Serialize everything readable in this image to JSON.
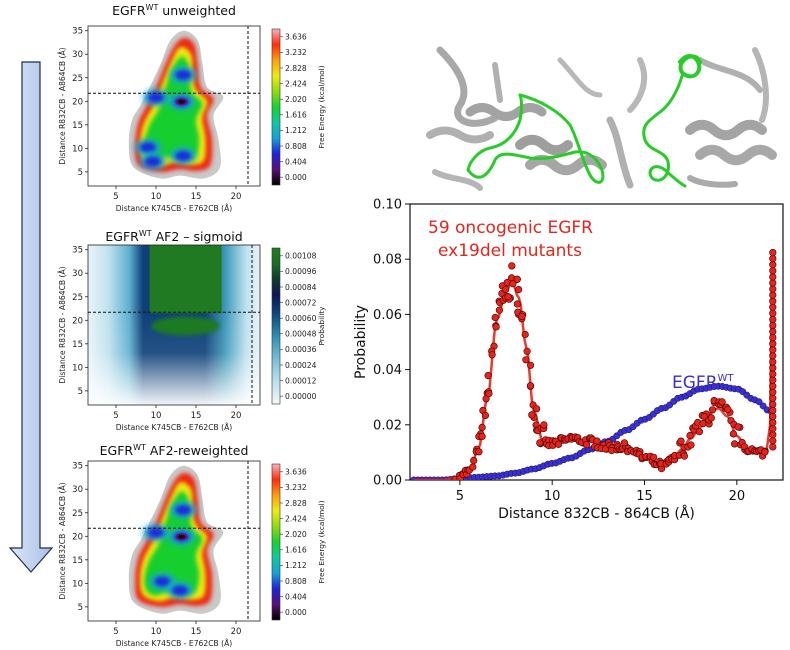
{
  "figure": {
    "arrow": {
      "direction": "down"
    }
  },
  "chart_data": [
    {
      "id": "unweighted",
      "type": "heatmap",
      "title": "EGFR",
      "title_sup": "WT",
      "title_rest": " unweighted",
      "xlabel": "Distance K745CB - E762CB (Å)",
      "ylabel": "Distance R832CB - A864CB (Å)",
      "xticks": [
        5,
        10,
        15,
        20
      ],
      "yticks": [
        5,
        10,
        15,
        20,
        25,
        30,
        35
      ],
      "xlim": [
        1.5,
        23
      ],
      "ylim": [
        2,
        36
      ],
      "ref_x": 21.5,
      "ref_y": 21.7,
      "colorbar": {
        "label": "Free Energy (kcal/mol)",
        "ticks": [
          "3.636",
          "3.232",
          "2.828",
          "2.424",
          "2.020",
          "1.616",
          "1.212",
          "0.808",
          "0.404",
          "0.000"
        ],
        "colors": [
          "#000000",
          "#5a0f7a",
          "#1d23d8",
          "#14a2d8",
          "#11c8a0",
          "#18d22e",
          "#8fdc10",
          "#ecec12",
          "#ff9e0c",
          "#ff2e0c",
          "#f9b1bd"
        ]
      },
      "minima": [
        [
          13.2,
          19.9
        ],
        [
          10.0,
          20.8
        ],
        [
          13.4,
          25.6
        ],
        [
          9.0,
          10.2
        ],
        [
          13.4,
          8.4
        ],
        [
          9.6,
          7.2
        ]
      ]
    },
    {
      "id": "af2_sigmoid",
      "type": "heatmap",
      "title": "EGFR",
      "title_sup": "WT",
      "title_rest": " AF2 – sigmoid",
      "xlabel": "Distance K745CB - E762CB (Å)",
      "ylabel": "Distance R832CB - A864CB (Å)",
      "xticks": [
        5,
        10,
        15,
        20
      ],
      "yticks": [
        5,
        10,
        15,
        20,
        25,
        30,
        35
      ],
      "xlim": [
        1.5,
        23
      ],
      "ylim": [
        2,
        36
      ],
      "ref_x": 22.0,
      "ref_y": 21.7,
      "colorbar": {
        "label": "Probability",
        "ticks": [
          "0.00108",
          "0.00096",
          "0.00084",
          "0.00072",
          "0.00060",
          "0.00048",
          "0.00036",
          "0.00024",
          "0.00012",
          "0.00000"
        ],
        "colors": [
          "#f2f8fb",
          "#cde7f0",
          "#a3d3e5",
          "#70bcd3",
          "#3f9bbb",
          "#1b6f9b",
          "#0d3f78",
          "#0c1756",
          "#0e3a2e",
          "#1a6e24",
          "#237a20"
        ]
      }
    },
    {
      "id": "af2_reweighted",
      "type": "heatmap",
      "title": "EGFR",
      "title_sup": "WT",
      "title_rest": " AF2-reweighted",
      "xlabel": "Distance K745CB - E762CB (Å)",
      "ylabel": "Distance R832CB - A864CB (Å)",
      "xticks": [
        5,
        10,
        15,
        20
      ],
      "yticks": [
        5,
        10,
        15,
        20,
        25,
        30,
        35
      ],
      "xlim": [
        1.5,
        23
      ],
      "ylim": [
        2,
        36
      ],
      "ref_x": 21.5,
      "ref_y": 21.7,
      "colorbar": {
        "label": "Free Energy (kcal/mol)",
        "ticks": [
          "3.636",
          "3.232",
          "2.828",
          "2.424",
          "2.020",
          "1.616",
          "1.212",
          "0.808",
          "0.404",
          "0.000"
        ],
        "colors": [
          "#000000",
          "#5a0f7a",
          "#1d23d8",
          "#14a2d8",
          "#11c8a0",
          "#18d22e",
          "#8fdc10",
          "#ecec12",
          "#ff9e0c",
          "#ff2e0c",
          "#f9b1bd"
        ]
      },
      "minima": [
        [
          13.2,
          19.9
        ],
        [
          10.0,
          20.8
        ],
        [
          13.4,
          25.6
        ],
        [
          10.8,
          10.4
        ],
        [
          13.0,
          8.5
        ]
      ]
    },
    {
      "id": "probability",
      "type": "line",
      "xlabel": "Distance 832CB - 864CB (Å)",
      "ylabel": "Probability",
      "xlim": [
        2.3,
        22.5
      ],
      "ylim": [
        0,
        0.1
      ],
      "xticks": [
        5,
        10,
        15,
        20
      ],
      "yticks": [
        "0.00",
        "0.02",
        "0.04",
        "0.06",
        "0.08",
        "0.10"
      ],
      "annotations": {
        "mutants_line1": "59 oncogenic EGFR",
        "mutants_line2": "ex19del mutants",
        "wt_label": "EGFR",
        "wt_sup": "WT"
      },
      "series": [
        {
          "name": "EGFR WT",
          "color": "#3a2fd0",
          "x": [
            2.5,
            3,
            4,
            5,
            6,
            7,
            8,
            9,
            10,
            11,
            12,
            13,
            14,
            15,
            16,
            17,
            18,
            19,
            20,
            21,
            21.8,
            22
          ],
          "y": [
            0.0,
            0.0,
            0.0,
            0.0005,
            0.001,
            0.0015,
            0.0025,
            0.004,
            0.006,
            0.008,
            0.011,
            0.014,
            0.018,
            0.022,
            0.026,
            0.03,
            0.033,
            0.034,
            0.033,
            0.029,
            0.025,
            0.024
          ]
        },
        {
          "name": "59 oncogenic EGFR ex19del mutants",
          "color": "#e8231a",
          "x": [
            2.5,
            4,
            5,
            5.5,
            6,
            6.5,
            7,
            7.5,
            7.8,
            8.2,
            8.6,
            9,
            9.5,
            10,
            10.5,
            11,
            12,
            13,
            14,
            15,
            16,
            16.5,
            17,
            17.5,
            18,
            18.5,
            19,
            19.5,
            20,
            20.5,
            21,
            21.6,
            21.8,
            21.9,
            22
          ],
          "y": [
            0.0,
            0.0,
            0.001,
            0.003,
            0.011,
            0.03,
            0.058,
            0.068,
            0.072,
            0.066,
            0.048,
            0.025,
            0.014,
            0.013,
            0.014,
            0.015,
            0.014,
            0.012,
            0.012,
            0.008,
            0.005,
            0.007,
            0.011,
            0.015,
            0.019,
            0.024,
            0.026,
            0.023,
            0.016,
            0.012,
            0.01,
            0.01,
            0.02,
            0.07,
            0.082
          ]
        }
      ]
    }
  ]
}
